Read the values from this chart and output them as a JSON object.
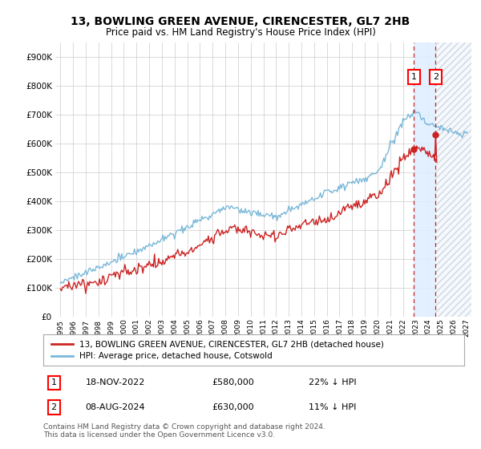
{
  "title": "13, BOWLING GREEN AVENUE, CIRENCESTER, GL7 2HB",
  "subtitle": "Price paid vs. HM Land Registry's House Price Index (HPI)",
  "legend_line1": "13, BOWLING GREEN AVENUE, CIRENCESTER, GL7 2HB (detached house)",
  "legend_line2": "HPI: Average price, detached house, Cotswold",
  "sale1_label": "1",
  "sale1_date": "18-NOV-2022",
  "sale1_price": "£580,000",
  "sale1_hpi": "22% ↓ HPI",
  "sale1_year": 2022.88,
  "sale1_value": 580000,
  "sale2_label": "2",
  "sale2_date": "08-AUG-2024",
  "sale2_price": "£630,000",
  "sale2_hpi": "11% ↓ HPI",
  "sale2_year": 2024.58,
  "sale2_value": 630000,
  "footer": "Contains HM Land Registry data © Crown copyright and database right 2024.\nThis data is licensed under the Open Government Licence v3.0.",
  "hpi_color": "#7ab8d9",
  "price_color": "#cc2222",
  "ylim_max": 950000,
  "yticks": [
    0,
    100000,
    200000,
    300000,
    400000,
    500000,
    600000,
    700000,
    800000,
    900000
  ],
  "xlim_min": 1994.6,
  "xlim_max": 2027.4,
  "background_color": "#ffffff",
  "grid_color": "#cccccc",
  "shade_between_color": "#ddeeff",
  "shade_after_color": "#e8e8e8"
}
